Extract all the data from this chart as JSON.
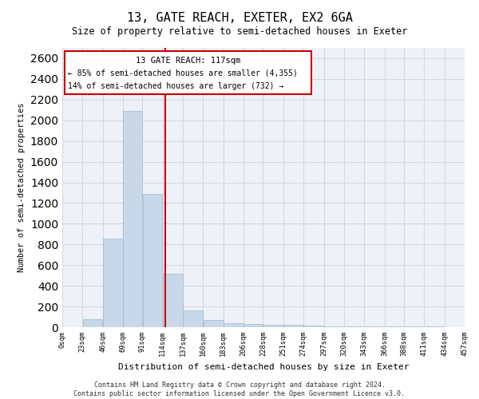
{
  "title": "13, GATE REACH, EXETER, EX2 6GA",
  "subtitle": "Size of property relative to semi-detached houses in Exeter",
  "xlabel": "Distribution of semi-detached houses by size in Exeter",
  "ylabel": "Number of semi-detached properties",
  "footer1": "Contains HM Land Registry data © Crown copyright and database right 2024.",
  "footer2": "Contains public sector information licensed under the Open Government Licence v3.0.",
  "annotation_line1": "13 GATE REACH: 117sqm",
  "annotation_line2": "← 85% of semi-detached houses are smaller (4,355)",
  "annotation_line3": "14% of semi-detached houses are larger (732) →",
  "property_size": 117,
  "bar_left_edges": [
    0,
    23,
    46,
    69,
    91,
    114,
    137,
    160,
    183,
    206,
    228,
    251,
    274,
    297,
    320,
    343,
    366,
    388,
    411,
    434
  ],
  "bar_widths": [
    23,
    23,
    23,
    22,
    23,
    23,
    23,
    23,
    23,
    22,
    23,
    23,
    23,
    23,
    23,
    23,
    22,
    23,
    23,
    23
  ],
  "bar_heights": [
    0,
    75,
    855,
    2090,
    1290,
    515,
    160,
    70,
    40,
    30,
    25,
    20,
    15,
    10,
    10,
    5,
    5,
    5,
    5,
    0
  ],
  "tick_labels": [
    "0sqm",
    "23sqm",
    "46sqm",
    "69sqm",
    "91sqm",
    "114sqm",
    "137sqm",
    "160sqm",
    "183sqm",
    "206sqm",
    "228sqm",
    "251sqm",
    "274sqm",
    "297sqm",
    "320sqm",
    "343sqm",
    "366sqm",
    "388sqm",
    "411sqm",
    "434sqm",
    "457sqm"
  ],
  "tick_positions": [
    0,
    23,
    46,
    69,
    91,
    114,
    137,
    160,
    183,
    206,
    228,
    251,
    274,
    297,
    320,
    343,
    366,
    388,
    411,
    434,
    457
  ],
  "bar_color": "#c8d8e8",
  "bar_edge_color": "#a0b8cc",
  "grid_color": "#d0d8e8",
  "background_color": "#eef2f8",
  "vline_color": "#cc0000",
  "vline_x": 117,
  "box_color": "#cc0000",
  "ylim": [
    0,
    2700
  ],
  "xlim": [
    0,
    457
  ]
}
